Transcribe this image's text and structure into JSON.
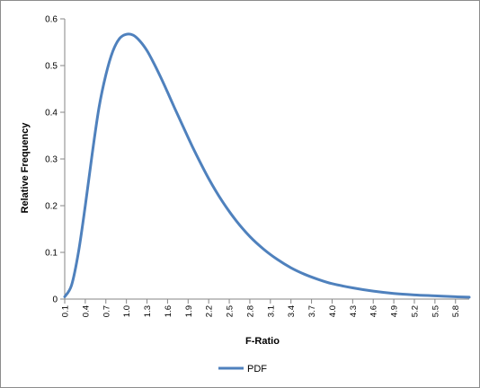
{
  "chart_data": {
    "type": "line",
    "xlabel": "F-Ratio",
    "ylabel": "Relative Frequency",
    "ylim": [
      0,
      0.6
    ],
    "yticks": [
      "0",
      "0.1",
      "0.2",
      "0.3",
      "0.4",
      "0.5",
      "0.6"
    ],
    "xticks": [
      "0.1",
      "0.4",
      "0.7",
      "1.0",
      "1.3",
      "1.6",
      "1.9",
      "2.2",
      "2.5",
      "2.8",
      "3.1",
      "3.4",
      "3.7",
      "4.0",
      "4.3",
      "4.6",
      "4.9",
      "5.2",
      "5.5",
      "5.8"
    ],
    "xlim": [
      0.1,
      6.0
    ],
    "grid": false,
    "legend": "bottom",
    "series": [
      {
        "name": "PDF",
        "color": "#4f81bd",
        "x": [
          0.1,
          0.2,
          0.3,
          0.4,
          0.5,
          0.6,
          0.7,
          0.8,
          0.9,
          1.0,
          1.1,
          1.2,
          1.3,
          1.4,
          1.5,
          1.6,
          1.7,
          1.8,
          1.9,
          2.0,
          2.2,
          2.4,
          2.6,
          2.8,
          3.0,
          3.2,
          3.4,
          3.6,
          3.8,
          4.0,
          4.3,
          4.6,
          4.9,
          5.2,
          5.5,
          5.8,
          6.0
        ],
        "values": [
          0.005,
          0.03,
          0.1,
          0.2,
          0.31,
          0.41,
          0.48,
          0.53,
          0.558,
          0.567,
          0.565,
          0.552,
          0.532,
          0.505,
          0.475,
          0.443,
          0.41,
          0.378,
          0.346,
          0.315,
          0.258,
          0.209,
          0.168,
          0.134,
          0.107,
          0.085,
          0.067,
          0.053,
          0.042,
          0.033,
          0.024,
          0.017,
          0.012,
          0.009,
          0.007,
          0.005,
          0.004
        ]
      }
    ]
  }
}
